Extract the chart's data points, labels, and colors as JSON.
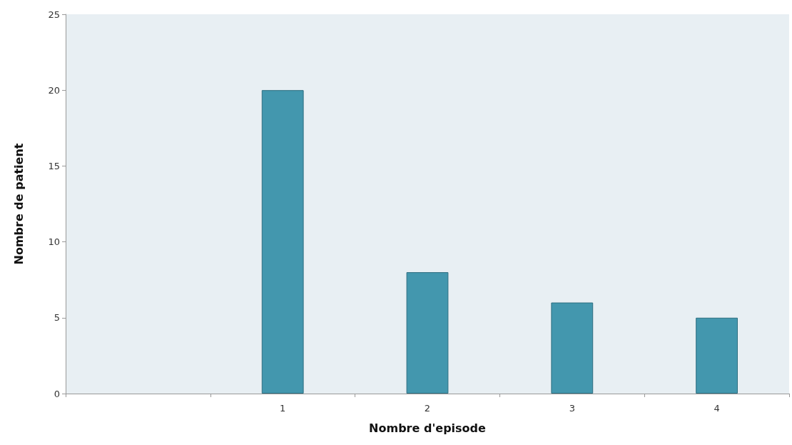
{
  "chart_data": {
    "type": "bar",
    "xlabel": "Nombre d'episode",
    "ylabel": "Nombre de patient",
    "categories": [
      null,
      "1",
      "2",
      "3",
      "4"
    ],
    "values": [
      null,
      20,
      8,
      6,
      5
    ],
    "color": "#4397ae",
    "ylim": [
      0,
      25
    ],
    "yticks": [
      0,
      5,
      10,
      15,
      20,
      25
    ],
    "grid": false
  }
}
